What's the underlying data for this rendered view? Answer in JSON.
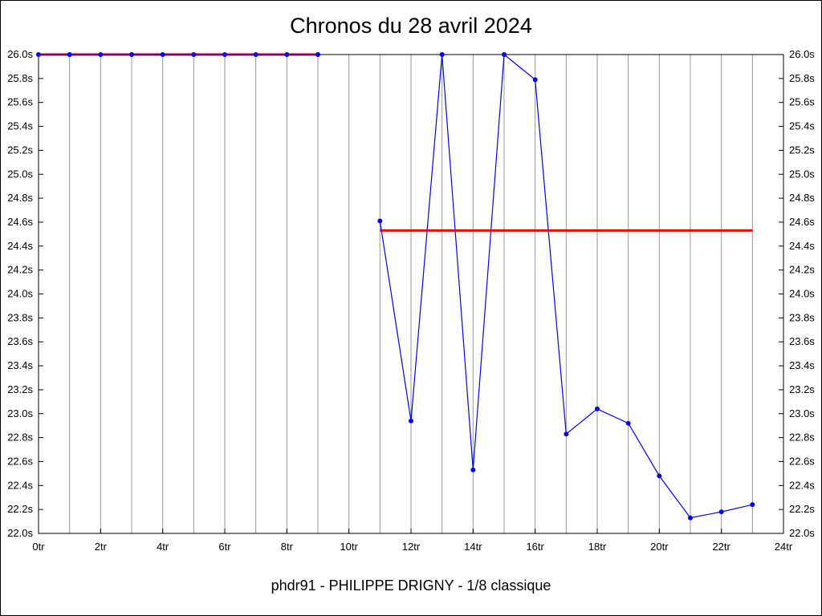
{
  "chart_data": {
    "type": "line",
    "title": "Chronos du 28 avril 2024",
    "footer": "phdr91 - PHILIPPE DRIGNY - 1/8 classique",
    "xlim": [
      0,
      24
    ],
    "ylim": [
      22.0,
      26.0
    ],
    "x_unit": "tr",
    "y_unit": "s",
    "grid": "vertical-only",
    "legend": "none",
    "x_grid_step": 1,
    "x_tick_values": [
      0,
      2,
      4,
      6,
      8,
      10,
      12,
      14,
      16,
      18,
      20,
      22,
      24
    ],
    "x_tick_labels": [
      "0tr",
      "2tr",
      "4tr",
      "6tr",
      "8tr",
      "10tr",
      "12tr",
      "14tr",
      "16tr",
      "18tr",
      "20tr",
      "22tr",
      "24tr"
    ],
    "y_tick_values": [
      26.0,
      25.8,
      25.6,
      25.4,
      25.2,
      25.0,
      24.8,
      24.6,
      24.4,
      24.2,
      24.0,
      23.8,
      23.6,
      23.4,
      23.2,
      23.0,
      22.8,
      22.6,
      22.4,
      22.2,
      22.0
    ],
    "y_tick_labels": [
      "26.0s",
      "25.8s",
      "25.6s",
      "25.4s",
      "25.2s",
      "25.0s",
      "24.8s",
      "24.6s",
      "24.4s",
      "24.2s",
      "24.0s",
      "23.8s",
      "23.6s",
      "23.4s",
      "23.2s",
      "23.0s",
      "22.8s",
      "22.6s",
      "22.4s",
      "22.2s",
      "22.0s"
    ],
    "colors": {
      "series": "#0000ff",
      "average": "#ff0000",
      "grid": "#999999",
      "axis": "#000000"
    },
    "series": [
      {
        "name": "serie-1-laps",
        "color": "#0000ff",
        "points": [
          [
            0,
            26.0
          ],
          [
            1,
            26.0
          ],
          [
            2,
            26.0
          ],
          [
            3,
            26.0
          ],
          [
            4,
            26.0
          ],
          [
            5,
            26.0
          ],
          [
            6,
            26.0
          ],
          [
            7,
            26.0
          ],
          [
            8,
            26.0
          ],
          [
            9,
            26.0
          ]
        ]
      },
      {
        "name": "serie-2-laps",
        "color": "#0000ff",
        "points": [
          [
            11,
            24.61
          ],
          [
            12,
            22.94
          ],
          [
            13,
            26.0
          ],
          [
            14,
            22.53
          ],
          [
            15,
            26.0
          ],
          [
            16,
            25.79
          ],
          [
            17,
            22.83
          ],
          [
            18,
            23.04
          ],
          [
            19,
            22.92
          ],
          [
            20,
            22.48
          ],
          [
            21,
            22.13
          ],
          [
            22,
            22.18
          ],
          [
            23,
            22.24
          ]
        ]
      }
    ],
    "reference_lines": [
      {
        "name": "moyenne-serie-1",
        "color": "#ff0000",
        "y": 26.0,
        "x1": 0,
        "x2": 9
      },
      {
        "name": "moyenne-serie-2",
        "color": "#ff0000",
        "y": 24.53,
        "x1": 11,
        "x2": 23
      }
    ]
  }
}
